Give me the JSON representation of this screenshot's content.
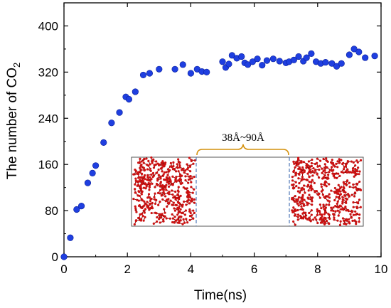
{
  "chart_data": {
    "type": "scatter",
    "xlabel": "Time(ns)",
    "ylabel_main": "The number of CO",
    "ylabel_sub": "2",
    "xlim": [
      0,
      10
    ],
    "ylim": [
      0,
      440
    ],
    "xticks": [
      0,
      2,
      4,
      6,
      8,
      10
    ],
    "yticks": [
      0,
      80,
      160,
      240,
      320,
      400
    ],
    "grid": false,
    "marker_color": "#1f3fe0",
    "x": [
      0.0,
      0.2,
      0.4,
      0.55,
      0.75,
      0.9,
      1.0,
      1.25,
      1.5,
      1.75,
      1.95,
      2.05,
      2.25,
      2.5,
      2.7,
      3.0,
      3.5,
      3.75,
      4.0,
      4.2,
      4.35,
      4.5,
      5.0,
      5.1,
      5.2,
      5.3,
      5.45,
      5.6,
      5.7,
      5.8,
      5.95,
      6.1,
      6.25,
      6.4,
      6.6,
      6.8,
      7.0,
      7.1,
      7.25,
      7.4,
      7.55,
      7.65,
      7.8,
      7.95,
      8.1,
      8.25,
      8.45,
      8.6,
      8.75,
      9.0,
      9.15,
      9.3,
      9.5,
      9.8
    ],
    "y": [
      0,
      33,
      82,
      88,
      128,
      145,
      158,
      198,
      232,
      250,
      277,
      273,
      286,
      315,
      318,
      325,
      325,
      333,
      318,
      325,
      321,
      320,
      338,
      328,
      334,
      349,
      344,
      347,
      336,
      333,
      338,
      343,
      332,
      340,
      343,
      339,
      336,
      338,
      341,
      347,
      339,
      345,
      352,
      338,
      335,
      337,
      335,
      330,
      335,
      350,
      360,
      355,
      345,
      348
    ],
    "inset": {
      "label": "38Å~90Å",
      "bracket_color": "#d4900c",
      "box_color": "#555555",
      "molecule_color": "#cc1111",
      "divider_color": "#4f79b7"
    }
  }
}
